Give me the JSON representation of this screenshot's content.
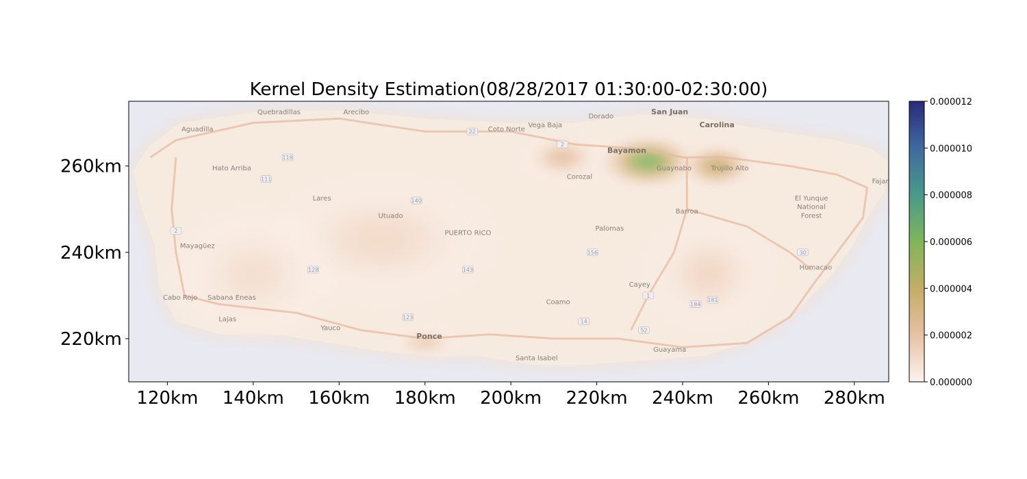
{
  "chart_data": {
    "type": "heatmap",
    "title": "Kernel Density Estimation(08/28/2017 01:30:00-02:30:00)",
    "xlabel": "",
    "ylabel": "",
    "xlim": [
      111,
      288
    ],
    "ylim": [
      210,
      275
    ],
    "x_ticks": [
      {
        "value": 120,
        "label": "120km"
      },
      {
        "value": 140,
        "label": "140km"
      },
      {
        "value": 160,
        "label": "160km"
      },
      {
        "value": 180,
        "label": "180km"
      },
      {
        "value": 200,
        "label": "200km"
      },
      {
        "value": 220,
        "label": "220km"
      },
      {
        "value": 240,
        "label": "240km"
      },
      {
        "value": 260,
        "label": "260km"
      },
      {
        "value": 280,
        "label": "280km"
      }
    ],
    "y_ticks": [
      {
        "value": 220,
        "label": "220km"
      },
      {
        "value": 240,
        "label": "240km"
      },
      {
        "value": 260,
        "label": "260km"
      }
    ],
    "colorbar": {
      "min": 0.0,
      "max": 1.2e-05,
      "ticks": [
        {
          "value": 0.0,
          "label": "0.000000"
        },
        {
          "value": 2e-06,
          "label": "0.000002"
        },
        {
          "value": 4e-06,
          "label": "0.000004"
        },
        {
          "value": 6e-06,
          "label": "0.000006"
        },
        {
          "value": 8e-06,
          "label": "0.000008"
        },
        {
          "value": 1e-05,
          "label": "0.000010"
        },
        {
          "value": 1.2e-05,
          "label": "0.000012"
        }
      ],
      "colors": [
        "#fdf3ef",
        "#e7c1a4",
        "#c4ad65",
        "#7fb55a",
        "#4a9a8a",
        "#3f6aa0",
        "#2a2a7a"
      ]
    },
    "density_peaks": [
      {
        "x": 232,
        "y": 261,
        "sx": 13,
        "sy": 7,
        "value": 6.2e-06
      },
      {
        "x": 248,
        "y": 260,
        "sx": 10,
        "sy": 6,
        "value": 4e-06
      },
      {
        "x": 212,
        "y": 262,
        "sx": 10,
        "sy": 6,
        "value": 2.2e-06
      },
      {
        "x": 180,
        "y": 219,
        "sx": 9,
        "sy": 4,
        "value": 1.6e-06
      },
      {
        "x": 170,
        "y": 243,
        "sx": 28,
        "sy": 16,
        "value": 1.1e-06
      },
      {
        "x": 140,
        "y": 235,
        "sx": 20,
        "sy": 16,
        "value": 9e-07
      },
      {
        "x": 246,
        "y": 235,
        "sx": 16,
        "sy": 14,
        "value": 1.2e-06
      }
    ]
  },
  "map_labels": [
    {
      "text": "Aguadilla",
      "x": 127,
      "y": 268
    },
    {
      "text": "Quebradillas",
      "x": 146,
      "y": 272
    },
    {
      "text": "Arecibo",
      "x": 164,
      "y": 272
    },
    {
      "text": "Coto Norte",
      "x": 199,
      "y": 268
    },
    {
      "text": "Vega Baja",
      "x": 208,
      "y": 269
    },
    {
      "text": "Dorado",
      "x": 221,
      "y": 271
    },
    {
      "text": "San Juan",
      "x": 237,
      "y": 272,
      "big": true
    },
    {
      "text": "Carolina",
      "x": 248,
      "y": 269,
      "big": true
    },
    {
      "text": "Bayamon",
      "x": 227,
      "y": 263,
      "big": true
    },
    {
      "text": "Guaynabo",
      "x": 238,
      "y": 259
    },
    {
      "text": "Trujillo Alto",
      "x": 251,
      "y": 259
    },
    {
      "text": "Corozal",
      "x": 216,
      "y": 257
    },
    {
      "text": "Hato Arriba",
      "x": 135,
      "y": 259
    },
    {
      "text": "Lares",
      "x": 156,
      "y": 252
    },
    {
      "text": "Utuado",
      "x": 172,
      "y": 248
    },
    {
      "text": "PUERTO RICO",
      "x": 190,
      "y": 244
    },
    {
      "text": "Palomas",
      "x": 223,
      "y": 245
    },
    {
      "text": "Barroa",
      "x": 241,
      "y": 249
    },
    {
      "text": "El Yunque",
      "x": 270,
      "y": 252
    },
    {
      "text": "National",
      "x": 270,
      "y": 250
    },
    {
      "text": "Forest",
      "x": 270,
      "y": 248
    },
    {
      "text": "Fajardo",
      "x": 287,
      "y": 256
    },
    {
      "text": "Mayagüez",
      "x": 127,
      "y": 241
    },
    {
      "text": "Humacao",
      "x": 271,
      "y": 236
    },
    {
      "text": "Cabo Rojo",
      "x": 123,
      "y": 229
    },
    {
      "text": "Sabana Eneas",
      "x": 135,
      "y": 229
    },
    {
      "text": "Cayey",
      "x": 230,
      "y": 232
    },
    {
      "text": "Coamo",
      "x": 211,
      "y": 228
    },
    {
      "text": "Lajas",
      "x": 134,
      "y": 224
    },
    {
      "text": "Yauco",
      "x": 158,
      "y": 222
    },
    {
      "text": "Ponce",
      "x": 181,
      "y": 220,
      "big": true
    },
    {
      "text": "Santa Isabel",
      "x": 206,
      "y": 215
    },
    {
      "text": "Guayama",
      "x": 237,
      "y": 217
    }
  ],
  "road_shields": [
    {
      "text": "22",
      "x": 191,
      "y": 268
    },
    {
      "text": "2",
      "x": 212,
      "y": 265
    },
    {
      "text": "119",
      "x": 148,
      "y": 262
    },
    {
      "text": "111",
      "x": 143,
      "y": 257
    },
    {
      "text": "140",
      "x": 178,
      "y": 252
    },
    {
      "text": "2",
      "x": 122,
      "y": 245
    },
    {
      "text": "156",
      "x": 219,
      "y": 240
    },
    {
      "text": "128",
      "x": 154,
      "y": 236
    },
    {
      "text": "143",
      "x": 190,
      "y": 236
    },
    {
      "text": "123",
      "x": 176,
      "y": 225
    },
    {
      "text": "14",
      "x": 217,
      "y": 224
    },
    {
      "text": "1",
      "x": 232,
      "y": 230
    },
    {
      "text": "52",
      "x": 231,
      "y": 222
    },
    {
      "text": "184",
      "x": 243,
      "y": 228
    },
    {
      "text": "181",
      "x": 247,
      "y": 229
    },
    {
      "text": "30",
      "x": 268,
      "y": 240
    }
  ]
}
